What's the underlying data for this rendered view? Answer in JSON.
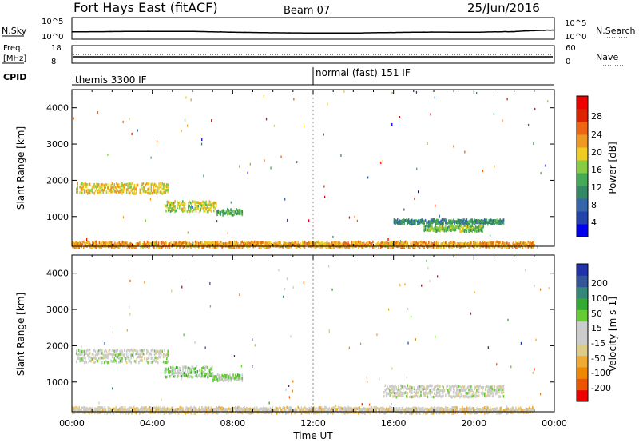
{
  "header": {
    "title": "Fort Hays East (fitACF)",
    "beam": "Beam 07",
    "date": "25/Jun/2016"
  },
  "noise_panel": {
    "left_label": "N.Sky",
    "right_label": "N.Search",
    "left_ticks": [
      "10^5",
      "10^0"
    ],
    "right_ticks": [
      "10^5",
      "10^0"
    ]
  },
  "freq_panel": {
    "left_label": "Freq.",
    "left_unit": "[MHz]",
    "right_label": "Nave",
    "left_ticks": [
      "18",
      "8"
    ],
    "right_ticks": [
      "60",
      "0"
    ]
  },
  "cpid": {
    "label": "CPID",
    "modes": [
      "themis 3300 IF",
      "normal (fast) 151 IF"
    ],
    "switch_time_hours": 12.0
  },
  "x_axis": {
    "label": "Time UT",
    "ticks": [
      "00:00",
      "04:00",
      "08:00",
      "12:00",
      "16:00",
      "20:00",
      "00:00"
    ]
  },
  "panels": {
    "power": {
      "ylabel": "Slant Range [km]",
      "cbar_label": "Power [dB]",
      "cbar_ticks": [
        "28",
        "24",
        "20",
        "16",
        "12",
        "8",
        "4"
      ]
    },
    "velocity": {
      "ylabel": "Slant Range [km]",
      "cbar_label": "Velocity [m s-1]",
      "cbar_ticks": [
        "200",
        "100",
        "50",
        "15",
        "-15",
        "-50",
        "-100",
        "-200"
      ]
    }
  },
  "colors": {
    "power_scale": [
      "#0000ee",
      "#2244aa",
      "#3366aa",
      "#338866",
      "#44aa55",
      "#88cc44",
      "#eecc22",
      "#ee9922",
      "#ee6611",
      "#dd2200",
      "#ee0000"
    ],
    "velocity_scale": [
      "#ee0000",
      "#ee5500",
      "#ee8800",
      "#eeaa33",
      "#ddcc88",
      "#cccccc",
      "#cccccc",
      "#66cc33",
      "#33aa33",
      "#338877",
      "#335599",
      "#2233aa"
    ],
    "ground_scatter": "#cccccc"
  },
  "chart_data": [
    {
      "type": "line",
      "title": "Fort Hays East (fitACF)",
      "series": [
        {
          "name": "N.Sky",
          "x": [
            0,
            2,
            4,
            6,
            8,
            10,
            12,
            14,
            16,
            18,
            20,
            22,
            24
          ],
          "values": [
            50,
            60,
            70,
            65,
            40,
            30,
            25,
            25,
            35,
            45,
            40,
            60,
            150
          ]
        }
      ],
      "ylim": [
        1,
        100000
      ],
      "yscale": "log"
    },
    {
      "type": "heatmap",
      "title": "Power [dB]",
      "xlabel": "Time UT",
      "ylabel": "Slant Range [km]",
      "xlim": [
        0,
        24
      ],
      "ylim": [
        180,
        4500
      ],
      "clim": [
        0,
        30
      ],
      "regions": [
        {
          "t_start": 0.2,
          "t_end": 4.8,
          "r_start": 1700,
          "r_end": 2000,
          "value": 18
        },
        {
          "t_start": 4.6,
          "t_end": 7.2,
          "r_start": 1200,
          "r_end": 1500,
          "value": 16
        },
        {
          "t_start": 7.2,
          "t_end": 8.5,
          "r_start": 1100,
          "r_end": 1250,
          "value": 12
        },
        {
          "t_start": 16.0,
          "t_end": 21.5,
          "r_start": 850,
          "r_end": 950,
          "value": 10
        },
        {
          "t_start": 17.5,
          "t_end": 20.5,
          "r_start": 650,
          "r_end": 800,
          "value": 14
        },
        {
          "t_start": 0.0,
          "t_end": 23.0,
          "r_start": 200,
          "r_end": 350,
          "value": 20
        }
      ]
    },
    {
      "type": "heatmap",
      "title": "Velocity [m s-1]",
      "xlabel": "Time UT",
      "ylabel": "Slant Range [km]",
      "xlim": [
        0,
        24
      ],
      "ylim": [
        180,
        4500
      ],
      "clim": [
        -250,
        250
      ],
      "regions": [
        {
          "t_start": 0.2,
          "t_end": 4.8,
          "r_start": 1600,
          "r_end": 2000,
          "value": 0
        },
        {
          "t_start": 4.6,
          "t_end": 7.0,
          "r_start": 1200,
          "r_end": 1500,
          "value": 40
        },
        {
          "t_start": 7.0,
          "t_end": 8.5,
          "r_start": 1100,
          "r_end": 1250,
          "value": 30
        },
        {
          "t_start": 15.5,
          "t_end": 21.5,
          "r_start": 650,
          "r_end": 1000,
          "value": 0
        },
        {
          "t_start": 0.0,
          "t_end": 23.0,
          "r_start": 200,
          "r_end": 350,
          "value": -40
        }
      ]
    }
  ]
}
